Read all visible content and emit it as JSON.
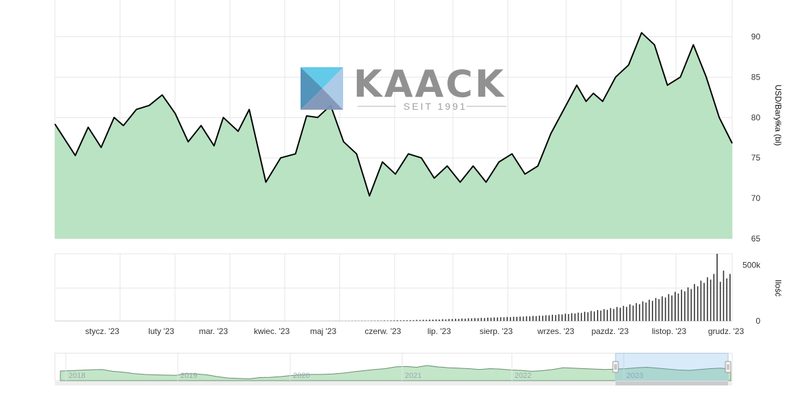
{
  "logo": {
    "word": "KAACK",
    "subtitle": "SEIT 1991"
  },
  "colors": {
    "area_fill": "#b9e3c2",
    "line": "#000000",
    "grid": "#e6e6e6",
    "volume_bar": "#333333",
    "navigator_fill": "#c3e6c8",
    "navigator_mask": "rgba(102,170,230,0.25)"
  },
  "chart_data": [
    {
      "type": "area",
      "ylabel": "USD/Baryłka (bl)",
      "ylim": [
        65,
        92
      ],
      "y_ticks": [
        "90",
        "85",
        "80",
        "75",
        "70",
        "65"
      ],
      "x": [
        "2022-12-19",
        "2022-12-30",
        "2023-01-06",
        "2023-01-13",
        "2023-01-20",
        "2023-01-25",
        "2023-02-01",
        "2023-02-08",
        "2023-02-15",
        "2023-02-22",
        "2023-03-01",
        "2023-03-08",
        "2023-03-15",
        "2023-03-20",
        "2023-03-28",
        "2023-04-03",
        "2023-04-12",
        "2023-04-20",
        "2023-04-28",
        "2023-05-04",
        "2023-05-10",
        "2023-05-17",
        "2023-05-24",
        "2023-05-31",
        "2023-06-07",
        "2023-06-14",
        "2023-06-21",
        "2023-06-28",
        "2023-07-05",
        "2023-07-12",
        "2023-07-19",
        "2023-07-26",
        "2023-08-02",
        "2023-08-09",
        "2023-08-16",
        "2023-08-23",
        "2023-08-30",
        "2023-09-06",
        "2023-09-13",
        "2023-09-20",
        "2023-09-27",
        "2023-10-02",
        "2023-10-06",
        "2023-10-11",
        "2023-10-18",
        "2023-10-25",
        "2023-11-01",
        "2023-11-08",
        "2023-11-15",
        "2023-11-22",
        "2023-11-29",
        "2023-12-06",
        "2023-12-13",
        "2023-12-20"
      ],
      "series": [
        {
          "values": [
            79.2,
            75.3,
            78.8,
            76.3,
            80.0,
            79.0,
            81.0,
            81.5,
            82.8,
            80.5,
            77.0,
            79.0,
            76.5,
            80.0,
            78.3,
            81.0,
            72.0,
            75.0,
            75.5,
            80.2,
            80.0,
            81.5,
            77.0,
            75.5,
            70.3,
            74.5,
            73.0,
            75.5,
            75.0,
            72.5,
            74.0,
            72.0,
            74.0,
            72.0,
            74.5,
            75.5,
            73.0,
            74.0,
            78.0,
            81.0,
            84.0,
            82.0,
            83.0,
            82.0,
            85.0,
            86.5,
            90.5,
            89.0,
            84.0,
            85.0,
            89.0,
            85.0,
            80.0,
            76.8
          ]
        }
      ],
      "x_ticks": [
        "stycz. '23",
        "luty '23",
        "mar. '23",
        "kwiec. '23",
        "maj '23",
        "czerw. '23",
        "lip. '23",
        "sierp. '23",
        "wrzes. '23",
        "pazdz. '23",
        "listop. '23",
        "grudz. '23"
      ]
    },
    {
      "type": "bar",
      "ylabel": "Ilość",
      "ylim": [
        0,
        600000
      ],
      "y_ticks": [
        "500k",
        "0"
      ],
      "values": [
        500,
        800,
        1200,
        700,
        1500,
        1100,
        900,
        1400,
        1300,
        2000,
        1800,
        1600,
        2200,
        2500,
        2100,
        3000,
        2800,
        3500,
        3200,
        4100,
        3900,
        5000,
        4600,
        6200,
        5800,
        7000,
        6500,
        8000,
        7600,
        9500,
        9000,
        11000,
        10500,
        12500,
        12000,
        14000,
        13000,
        16000,
        15000,
        18000,
        17000,
        20000,
        19000,
        22000,
        21000,
        24000,
        23000,
        26000,
        25000,
        28000,
        27000,
        30000,
        29000,
        32000,
        31000,
        34000,
        33000,
        36000,
        35000,
        38000,
        37000,
        40000,
        39000,
        42000,
        41000,
        45000,
        44000,
        48000,
        47000,
        52000,
        50000,
        56000,
        54000,
        60000,
        58000,
        65000,
        62000,
        70000,
        67000,
        75000,
        72000,
        82000,
        78000,
        90000,
        85000,
        98000,
        93000,
        106000,
        100000,
        115000,
        108000,
        125000,
        118000,
        135000,
        126000,
        148000,
        138000,
        160000,
        150000,
        175000,
        165000,
        190000,
        180000,
        205000,
        195000,
        220000,
        210000,
        240000,
        228000,
        260000,
        245000,
        280000,
        265000,
        300000,
        285000,
        330000,
        310000,
        360000,
        340000,
        390000,
        370000,
        420000,
        600000,
        350000,
        450000,
        380000,
        420000
      ]
    }
  ],
  "navigator": {
    "years": [
      "2018",
      "2019",
      "2020",
      "2021",
      "2022",
      "2023"
    ],
    "values": [
      73,
      75,
      77,
      79,
      80,
      72,
      68,
      62,
      58,
      56,
      55,
      54,
      62,
      60,
      56,
      48,
      42,
      40,
      38,
      44,
      45,
      48,
      53,
      56,
      58,
      58,
      60,
      64,
      70,
      75,
      80,
      84,
      92,
      94,
      90,
      98,
      92,
      88,
      86,
      84,
      80,
      84,
      82,
      78,
      76,
      72,
      75,
      80,
      88,
      86,
      84,
      82,
      80,
      82,
      84,
      88,
      90,
      86,
      82,
      78,
      76,
      80,
      84,
      86,
      82
    ]
  }
}
